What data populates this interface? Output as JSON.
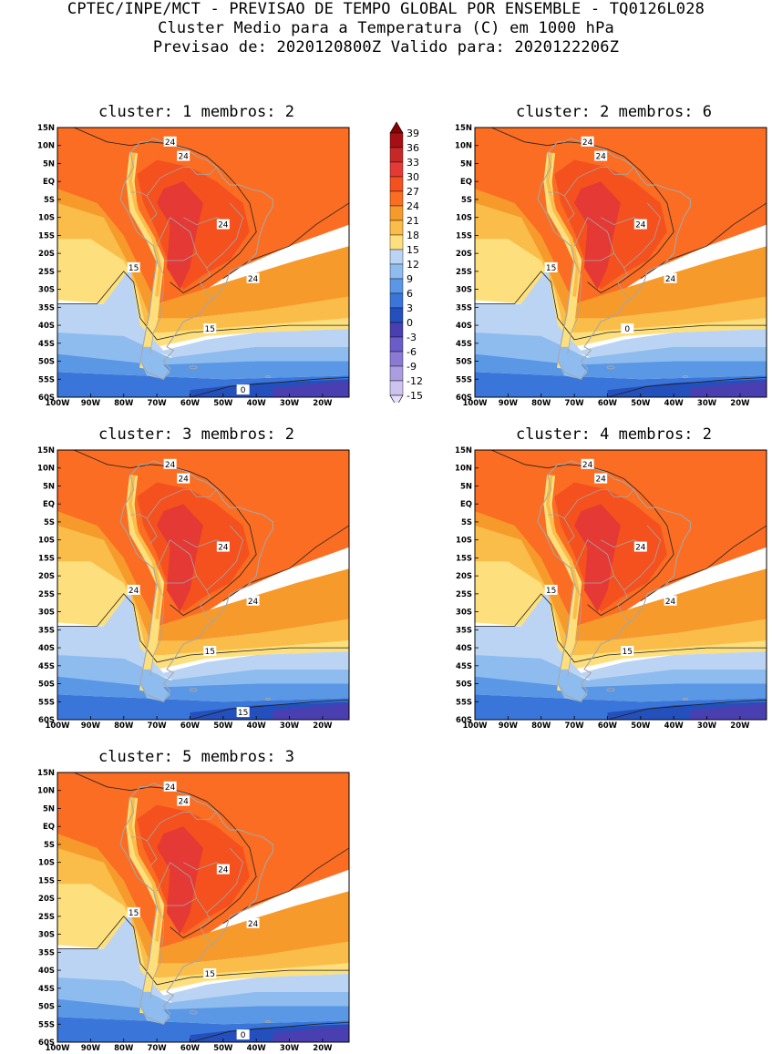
{
  "header": {
    "line1": "CPTEC/INPE/MCT - PREVISAO DE TEMPO GLOBAL POR ENSEMBLE - TQ0126L028",
    "line2": "Cluster Medio para a Temperatura (C) em 1000 hPa",
    "line3": "Previsao de: 2020120800Z   Valido para: 2020122206Z"
  },
  "axes": {
    "lat_labels": [
      "15N",
      "10N",
      "5N",
      "EQ",
      "5S",
      "10S",
      "15S",
      "20S",
      "25S",
      "30S",
      "35S",
      "40S",
      "45S",
      "50S",
      "55S",
      "60S"
    ],
    "lon_labels": [
      "100W",
      "90W",
      "80W",
      "70W",
      "60W",
      "50W",
      "40W",
      "30W",
      "20W"
    ]
  },
  "panels": [
    {
      "title": "cluster: 1   membros: 2",
      "labels": [
        "24",
        "24",
        "24",
        "24",
        "15",
        "15",
        "0"
      ]
    },
    {
      "title": "cluster: 2   membros: 6",
      "labels": [
        "24",
        "24",
        "24",
        "24",
        "15",
        "0"
      ]
    },
    {
      "title": "cluster: 3   membros: 2",
      "labels": [
        "24",
        "24",
        "24",
        "24",
        "24",
        "15",
        "15"
      ]
    },
    {
      "title": "cluster: 4   membros: 2",
      "labels": [
        "24",
        "24",
        "24",
        "24",
        "15",
        "15"
      ]
    },
    {
      "title": "cluster: 5   membros: 3",
      "labels": [
        "24",
        "24",
        "24",
        "24",
        "15",
        "15",
        "0"
      ]
    }
  ],
  "colorbar": {
    "labels": [
      "39",
      "36",
      "33",
      "30",
      "27",
      "24",
      "21",
      "18",
      "15",
      "12",
      "9",
      "6",
      "3",
      "0",
      "-3",
      "-6",
      "-9",
      "-12",
      "-15"
    ],
    "colors": [
      "#a50f15",
      "#c62828",
      "#e53935",
      "#f4511e",
      "#fb6d22",
      "#f79a2c",
      "#fbbd4a",
      "#fde07d",
      "#bcd4f4",
      "#8fbcef",
      "#5a97e5",
      "#3a76d9",
      "#2450be",
      "#4a3fb0",
      "#6b5cc7",
      "#8a7ad3",
      "#ab9de0",
      "#cdc3ef"
    ]
  }
}
